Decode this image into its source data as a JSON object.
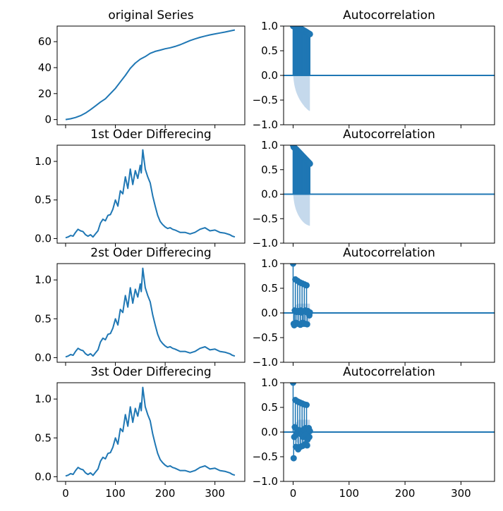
{
  "colors": {
    "line": "#1f77b4",
    "band": "#c5d9ec",
    "axis": "#000000"
  },
  "left_y_ticks": {
    "orig": [
      "0",
      "20",
      "40",
      "60"
    ],
    "diff": [
      "0.0",
      "0.5",
      "1.0"
    ]
  },
  "acf_y_ticks": [
    "1.0",
    "0.5",
    "0.0",
    "−0.5",
    "−1.0"
  ],
  "left_x_ticks": [
    "0",
    "100",
    "200",
    "300"
  ],
  "acf_x_ticks": [
    "0",
    "100",
    "200",
    "300"
  ],
  "chart_data": [
    {
      "type": "line",
      "title": "original Series",
      "xlim": [
        -17,
        360
      ],
      "ylim": [
        -4,
        72
      ],
      "x": [
        0,
        10,
        20,
        30,
        40,
        50,
        60,
        70,
        80,
        90,
        100,
        110,
        120,
        130,
        140,
        150,
        160,
        170,
        180,
        190,
        200,
        210,
        220,
        230,
        240,
        250,
        260,
        270,
        280,
        290,
        300,
        310,
        320,
        330,
        340
      ],
      "y": [
        0,
        0.6,
        1.6,
        3,
        5,
        7.6,
        10.5,
        13.5,
        16,
        20,
        24,
        29,
        34,
        39.5,
        43.5,
        46.5,
        48.5,
        51,
        52.5,
        53.5,
        54.5,
        55.3,
        56.3,
        57.6,
        59.2,
        60.8,
        62.1,
        63.3,
        64.3,
        65.2,
        66,
        66.7,
        67.4,
        68.2,
        69
      ]
    },
    {
      "type": "bar",
      "title": "Autocorrelation",
      "xlim": [
        -17,
        360
      ],
      "ylim": [
        -1.0,
        1.0
      ],
      "lags": [
        0,
        1,
        2,
        3,
        4,
        5,
        6,
        7,
        8,
        9,
        10,
        11,
        12,
        13,
        14,
        15,
        16,
        17,
        18,
        19,
        20,
        21,
        22,
        23,
        24,
        25,
        26,
        27,
        28,
        29,
        30
      ],
      "acf": [
        1.0,
        0.997,
        0.994,
        0.99,
        0.987,
        0.983,
        0.979,
        0.975,
        0.971,
        0.966,
        0.962,
        0.957,
        0.952,
        0.947,
        0.942,
        0.936,
        0.931,
        0.925,
        0.919,
        0.912,
        0.906,
        0.899,
        0.892,
        0.885,
        0.878,
        0.871,
        0.864,
        0.857,
        0.85,
        0.843,
        0.836
      ],
      "confint": [
        0,
        0.106,
        0.183,
        0.236,
        0.279,
        0.316,
        0.349,
        0.378,
        0.405,
        0.43,
        0.453,
        0.475,
        0.495,
        0.514,
        0.532,
        0.55,
        0.566,
        0.582,
        0.597,
        0.611,
        0.625,
        0.638,
        0.65,
        0.662,
        0.673,
        0.684,
        0.694,
        0.704,
        0.713,
        0.72,
        0.72
      ]
    },
    {
      "type": "line",
      "title": "1st Oder Differecing",
      "xlim": [
        -17,
        360
      ],
      "ylim": [
        -0.06,
        1.21
      ],
      "x": [
        0,
        5,
        10,
        15,
        20,
        25,
        30,
        35,
        40,
        45,
        50,
        55,
        60,
        65,
        70,
        75,
        80,
        85,
        90,
        95,
        100,
        105,
        110,
        115,
        120,
        125,
        130,
        135,
        140,
        145,
        150,
        152,
        155,
        160,
        165,
        170,
        175,
        180,
        185,
        190,
        195,
        200,
        205,
        210,
        215,
        220,
        230,
        240,
        250,
        260,
        270,
        280,
        290,
        300,
        310,
        320,
        330,
        335,
        340
      ],
      "y": [
        0.01,
        0.02,
        0.04,
        0.03,
        0.08,
        0.12,
        0.1,
        0.09,
        0.05,
        0.03,
        0.05,
        0.02,
        0.06,
        0.1,
        0.2,
        0.25,
        0.23,
        0.3,
        0.31,
        0.38,
        0.5,
        0.42,
        0.62,
        0.58,
        0.8,
        0.65,
        0.9,
        0.7,
        0.88,
        0.78,
        0.95,
        0.85,
        1.15,
        0.9,
        0.8,
        0.72,
        0.55,
        0.42,
        0.3,
        0.22,
        0.18,
        0.15,
        0.13,
        0.14,
        0.12,
        0.11,
        0.08,
        0.08,
        0.06,
        0.08,
        0.12,
        0.14,
        0.1,
        0.11,
        0.08,
        0.07,
        0.05,
        0.03,
        0.02
      ]
    },
    {
      "type": "bar",
      "title": "Autocorrelation",
      "xlim": [
        -17,
        360
      ],
      "ylim": [
        -1.0,
        1.0
      ],
      "lags": [
        0,
        1,
        2,
        3,
        4,
        5,
        6,
        7,
        8,
        9,
        10,
        11,
        12,
        13,
        14,
        15,
        16,
        17,
        18,
        19,
        20,
        21,
        22,
        23,
        24,
        25,
        26,
        27,
        28,
        29,
        30
      ],
      "acf": [
        1.0,
        0.962,
        0.952,
        0.94,
        0.932,
        0.92,
        0.91,
        0.898,
        0.885,
        0.874,
        0.862,
        0.85,
        0.838,
        0.826,
        0.814,
        0.802,
        0.79,
        0.778,
        0.766,
        0.754,
        0.742,
        0.73,
        0.718,
        0.706,
        0.694,
        0.682,
        0.67,
        0.658,
        0.646,
        0.634,
        0.622
      ],
      "confint": [
        0,
        0.106,
        0.182,
        0.234,
        0.276,
        0.312,
        0.343,
        0.371,
        0.397,
        0.42,
        0.442,
        0.462,
        0.481,
        0.498,
        0.514,
        0.529,
        0.543,
        0.556,
        0.568,
        0.579,
        0.589,
        0.598,
        0.606,
        0.613,
        0.62,
        0.626,
        0.631,
        0.636,
        0.64,
        0.644,
        0.647
      ]
    },
    {
      "type": "line",
      "title": "2st Oder Differecing",
      "xlim": [
        -17,
        360
      ],
      "ylim": [
        -0.06,
        1.21
      ],
      "x": [
        0,
        5,
        10,
        15,
        20,
        25,
        30,
        35,
        40,
        45,
        50,
        55,
        60,
        65,
        70,
        75,
        80,
        85,
        90,
        95,
        100,
        105,
        110,
        115,
        120,
        125,
        130,
        135,
        140,
        145,
        150,
        152,
        155,
        160,
        165,
        170,
        175,
        180,
        185,
        190,
        195,
        200,
        205,
        210,
        215,
        220,
        230,
        240,
        250,
        260,
        270,
        280,
        290,
        300,
        310,
        320,
        330,
        335,
        340
      ],
      "y": [
        0.01,
        0.02,
        0.04,
        0.03,
        0.08,
        0.12,
        0.1,
        0.09,
        0.05,
        0.03,
        0.05,
        0.02,
        0.06,
        0.1,
        0.2,
        0.25,
        0.23,
        0.3,
        0.31,
        0.38,
        0.5,
        0.42,
        0.62,
        0.58,
        0.8,
        0.65,
        0.9,
        0.7,
        0.88,
        0.78,
        0.95,
        0.85,
        1.15,
        0.9,
        0.8,
        0.72,
        0.55,
        0.42,
        0.3,
        0.22,
        0.18,
        0.15,
        0.13,
        0.14,
        0.12,
        0.11,
        0.08,
        0.08,
        0.06,
        0.08,
        0.12,
        0.14,
        0.1,
        0.11,
        0.08,
        0.07,
        0.05,
        0.03,
        0.02
      ]
    },
    {
      "type": "bar",
      "title": "Autocorrelation",
      "xlim": [
        -17,
        360
      ],
      "ylim": [
        -1.0,
        1.0
      ],
      "lags": [
        0,
        1,
        2,
        3,
        4,
        5,
        6,
        7,
        8,
        9,
        10,
        11,
        12,
        13,
        14,
        15,
        16,
        17,
        18,
        19,
        20,
        21,
        22,
        23,
        24,
        25,
        26,
        27,
        28,
        29,
        30
      ],
      "acf": [
        1.0,
        -0.22,
        -0.25,
        0.05,
        0.68,
        -0.2,
        0.02,
        0.03,
        0.65,
        -0.22,
        0.04,
        0.02,
        0.62,
        -0.24,
        0.05,
        0.01,
        0.6,
        -0.2,
        -0.22,
        0.03,
        0.58,
        -0.22,
        0.05,
        0.02,
        0.56,
        -0.23,
        0.04,
        0.02,
        0.01,
        -0.05,
        0.01
      ],
      "confint": [
        0,
        0.106,
        0.12,
        0.135,
        0.15,
        0.16,
        0.17,
        0.175,
        0.18,
        0.185,
        0.19,
        0.19,
        0.19,
        0.19,
        0.19,
        0.19,
        0.19,
        0.19,
        0.19,
        0.19,
        0.19,
        0.19,
        0.19,
        0.19,
        0.19,
        0.19,
        0.19,
        0.19,
        0.19,
        0.19,
        0.19
      ]
    },
    {
      "type": "line",
      "title": "3st Oder Differecing",
      "xlim": [
        -17,
        360
      ],
      "ylim": [
        -0.06,
        1.21
      ],
      "x": [
        0,
        5,
        10,
        15,
        20,
        25,
        30,
        35,
        40,
        45,
        50,
        55,
        60,
        65,
        70,
        75,
        80,
        85,
        90,
        95,
        100,
        105,
        110,
        115,
        120,
        125,
        130,
        135,
        140,
        145,
        150,
        152,
        155,
        160,
        165,
        170,
        175,
        180,
        185,
        190,
        195,
        200,
        205,
        210,
        215,
        220,
        230,
        240,
        250,
        260,
        270,
        280,
        290,
        300,
        310,
        320,
        330,
        335,
        340
      ],
      "y": [
        0.01,
        0.02,
        0.04,
        0.03,
        0.08,
        0.12,
        0.1,
        0.09,
        0.05,
        0.03,
        0.05,
        0.02,
        0.06,
        0.1,
        0.2,
        0.25,
        0.23,
        0.3,
        0.31,
        0.38,
        0.5,
        0.42,
        0.62,
        0.58,
        0.8,
        0.65,
        0.9,
        0.7,
        0.88,
        0.78,
        0.95,
        0.85,
        1.15,
        0.9,
        0.8,
        0.72,
        0.55,
        0.42,
        0.3,
        0.22,
        0.18,
        0.15,
        0.13,
        0.14,
        0.12,
        0.11,
        0.08,
        0.08,
        0.06,
        0.08,
        0.12,
        0.14,
        0.1,
        0.11,
        0.08,
        0.07,
        0.05,
        0.03,
        0.02
      ]
    },
    {
      "type": "bar",
      "title": "Autocorrelation",
      "xlim": [
        -17,
        360
      ],
      "ylim": [
        -1.0,
        1.0
      ],
      "lags": [
        0,
        1,
        2,
        3,
        4,
        5,
        6,
        7,
        8,
        9,
        10,
        11,
        12,
        13,
        14,
        15,
        16,
        17,
        18,
        19,
        20,
        21,
        22,
        23,
        24,
        25,
        26,
        27,
        28,
        29,
        30
      ],
      "acf": [
        1.0,
        -0.53,
        -0.1,
        0.1,
        0.65,
        -0.3,
        -0.05,
        0.05,
        0.62,
        -0.35,
        0.04,
        0.0,
        0.6,
        -0.3,
        0.03,
        -0.05,
        0.58,
        -0.28,
        -0.1,
        0.05,
        0.56,
        -0.25,
        0.08,
        -0.05,
        0.55,
        -0.27,
        -0.15,
        0.06,
        0.08,
        -0.1,
        0.02
      ],
      "confint": [
        0,
        0.106,
        0.14,
        0.15,
        0.16,
        0.19,
        0.2,
        0.21,
        0.22,
        0.24,
        0.25,
        0.25,
        0.25,
        0.25,
        0.25,
        0.25,
        0.25,
        0.25,
        0.25,
        0.25,
        0.25,
        0.25,
        0.25,
        0.25,
        0.25,
        0.25,
        0.25,
        0.25,
        0.25,
        0.25,
        0.25
      ]
    }
  ]
}
